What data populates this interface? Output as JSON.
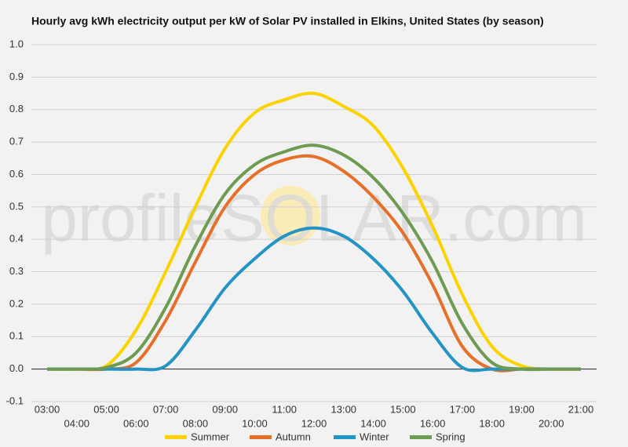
{
  "chart_data": {
    "type": "line",
    "title": "Hourly avg kWh electricity output per kW of Solar PV installed in Elkins, United States (by season)",
    "watermark": "profileSOLAR.com",
    "categories": [
      "03:00",
      "04:00",
      "05:00",
      "06:00",
      "07:00",
      "08:00",
      "09:00",
      "10:00",
      "11:00",
      "12:00",
      "13:00",
      "14:00",
      "15:00",
      "16:00",
      "17:00",
      "18:00",
      "19:00",
      "20:00",
      "21:00"
    ],
    "series": [
      {
        "name": "Summer",
        "color": "#fad300",
        "values": [
          0,
          0,
          0.01,
          0.12,
          0.3,
          0.5,
          0.68,
          0.79,
          0.83,
          0.85,
          0.81,
          0.75,
          0.62,
          0.44,
          0.23,
          0.07,
          0.01,
          0,
          0
        ]
      },
      {
        "name": "Autumn",
        "color": "#e6702a",
        "values": [
          0,
          0,
          0,
          0.02,
          0.15,
          0.33,
          0.5,
          0.6,
          0.645,
          0.655,
          0.61,
          0.53,
          0.42,
          0.26,
          0.07,
          0,
          0,
          0,
          0
        ]
      },
      {
        "name": "Winter",
        "color": "#2494c4",
        "values": [
          0,
          0,
          0,
          0,
          0.01,
          0.12,
          0.25,
          0.34,
          0.41,
          0.435,
          0.41,
          0.34,
          0.24,
          0.11,
          0.005,
          0,
          0,
          0,
          0
        ]
      },
      {
        "name": "Spring",
        "color": "#6e9b52",
        "values": [
          0,
          0,
          0.005,
          0.05,
          0.19,
          0.38,
          0.54,
          0.63,
          0.67,
          0.69,
          0.66,
          0.59,
          0.48,
          0.33,
          0.14,
          0.02,
          0,
          0,
          0
        ]
      }
    ],
    "ylim": [
      -0.1,
      1.0
    ],
    "yticks": [
      -0.1,
      {
        "value": 0,
        "label": "0.0"
      },
      0.1,
      0.2,
      0.3,
      0.4,
      0.5,
      0.6,
      0.7,
      0.8,
      0.9,
      {
        "value": 1,
        "label": "1.0"
      }
    ],
    "grid": true,
    "legend": "bottom"
  }
}
